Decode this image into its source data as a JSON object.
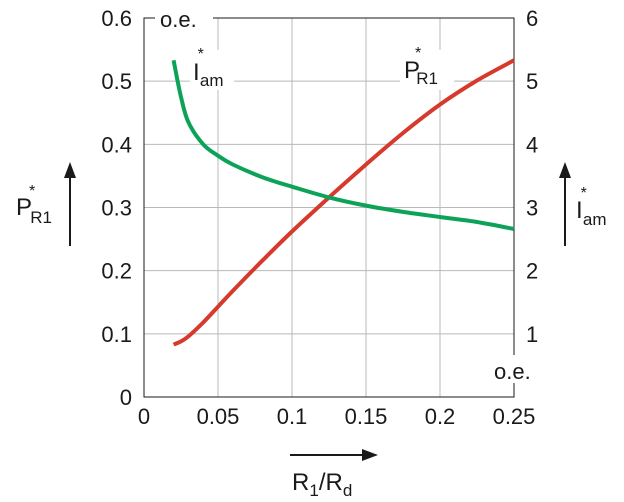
{
  "chart_data": {
    "type": "line",
    "x": [
      0.02,
      0.025,
      0.03,
      0.04,
      0.05,
      0.06,
      0.08,
      0.1,
      0.125,
      0.15,
      0.175,
      0.2,
      0.225,
      0.25
    ],
    "series": [
      {
        "name": "P*R1",
        "axis": "left",
        "color": "#d63a2c",
        "values": [
          0.083,
          0.088,
          0.096,
          0.118,
          0.143,
          0.168,
          0.216,
          0.262,
          0.316,
          0.368,
          0.418,
          0.463,
          0.501,
          0.533
        ]
      },
      {
        "name": "I*am",
        "axis": "right",
        "color": "#0ca358",
        "values": [
          5.33,
          4.75,
          4.35,
          4.0,
          3.82,
          3.68,
          3.48,
          3.33,
          3.16,
          3.03,
          2.93,
          2.85,
          2.77,
          2.66
        ]
      }
    ],
    "xlim": [
      0,
      0.25
    ],
    "ylim_left": [
      0,
      0.6
    ],
    "ylim_right": [
      0,
      6
    ],
    "grid": true,
    "x_ticks": [
      "0",
      "0.05",
      "0.1",
      "0.15",
      "0.2",
      "0.25"
    ],
    "y_left_ticks": [
      "0",
      "0.1",
      "0.2",
      "0.3",
      "0.4",
      "0.5",
      "0.6"
    ],
    "y_right_ticks": [
      "1",
      "2",
      "3",
      "4",
      "5",
      "6"
    ],
    "unit_left": "o.e.",
    "unit_right": "o.e.",
    "xlabel": {
      "main": "R",
      "sub1": "1",
      "slash": "/R",
      "sub2": "d"
    },
    "ylabel_left": {
      "main": "P",
      "sup": "*",
      "sub": "R1"
    },
    "ylabel_right": {
      "main": "I",
      "sup": "*",
      "sub": "am"
    },
    "curve_label_green": {
      "main": "I",
      "sup": "*",
      "sub": "am"
    },
    "curve_label_red": {
      "main": "P",
      "sup": "*",
      "sub": "R1"
    }
  }
}
